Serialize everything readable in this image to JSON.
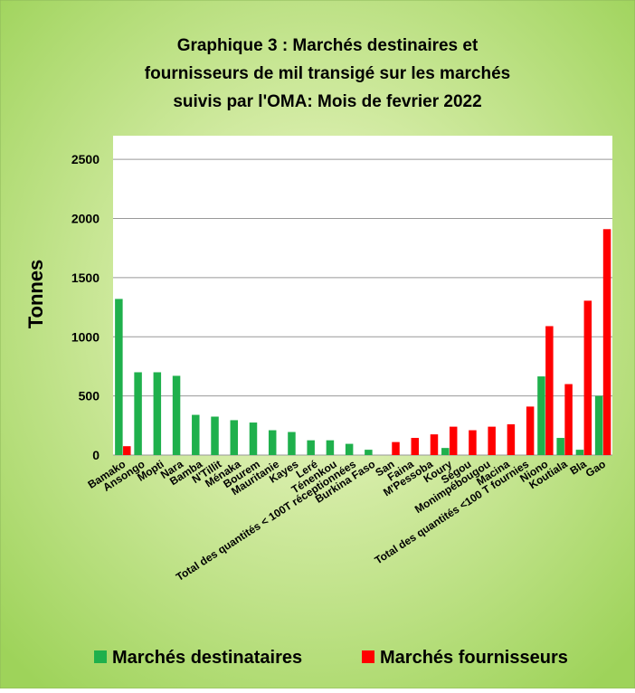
{
  "chart_data": {
    "type": "bar",
    "title_lines": [
      "Graphique 3 : Marchés destinaires et",
      "fournisseurs de mil transigé sur les marchés",
      "suivis par l'OMA: Mois de fevrier  2022"
    ],
    "ylabel": "Tonnes",
    "categories": [
      "Bamako",
      "Ansongo",
      "Mopti",
      "Nara",
      "Bamba",
      "N'Tillit",
      "Ménaka",
      "Bourem",
      "Mauritanie",
      "Kayes",
      "Leré",
      "Ténenkou",
      "Total des quantités < 100T réceptionnées",
      "Burkina Faso",
      "San",
      "Faina",
      "M'Pessoba",
      "Koury",
      "Ségou",
      "Monimpébougou",
      "Macina",
      "Total des quantités <100 T fournies",
      "Niono",
      "Koutiala",
      "Bla",
      "Gao"
    ],
    "series": [
      {
        "name": "Marchés destinataires",
        "color": "#1fb04c",
        "values": [
          1320,
          700,
          700,
          670,
          340,
          325,
          295,
          275,
          210,
          195,
          125,
          125,
          95,
          45,
          0,
          0,
          0,
          60,
          0,
          0,
          0,
          0,
          665,
          145,
          45,
          500
        ]
      },
      {
        "name": "Marchés fournisseurs",
        "color": "#ff0000",
        "values": [
          75,
          0,
          0,
          0,
          0,
          0,
          0,
          0,
          0,
          0,
          0,
          0,
          0,
          0,
          110,
          145,
          175,
          240,
          210,
          240,
          260,
          410,
          1090,
          600,
          1305,
          1910
        ]
      }
    ],
    "ylim": [
      0,
      2700
    ],
    "yticks": [
      0,
      500,
      1000,
      1500,
      2000,
      2500
    ],
    "grid": true,
    "legend": "bottom"
  }
}
